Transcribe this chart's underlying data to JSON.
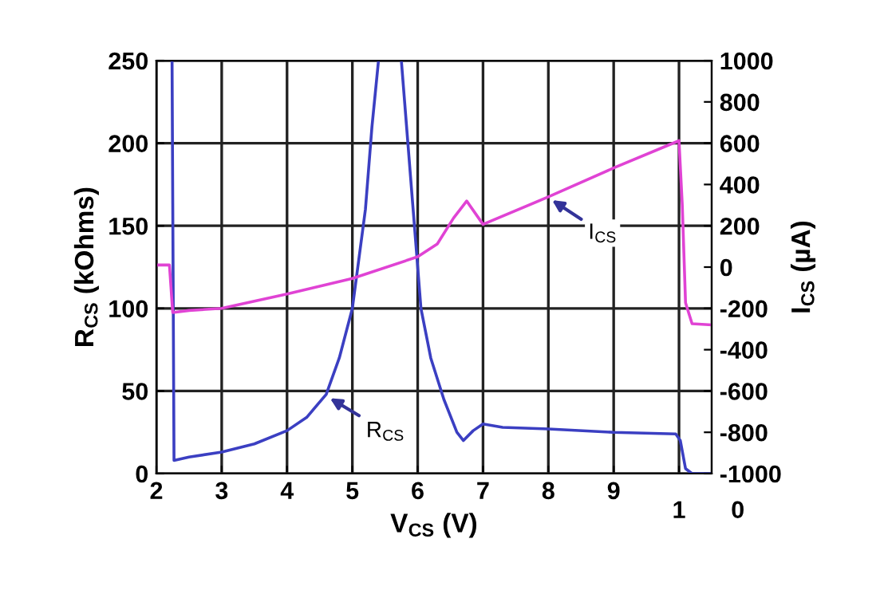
{
  "chart_data": {
    "type": "line",
    "xlabel": "V$_{CS}$ (V)",
    "ylabel": "R$_{CS}$ (kOhms)",
    "y2label": "I$_{CS}$ (µA)",
    "xlim": [
      2,
      10.5
    ],
    "xticks": [
      2,
      3,
      4,
      5,
      6,
      7,
      8,
      9,
      {
        "value": 10,
        "label": null
      }
    ],
    "ylim": [
      0,
      250
    ],
    "yticks": [
      0,
      50,
      100,
      150,
      200,
      250
    ],
    "y2lim": [
      -1000,
      1000
    ],
    "y2ticks": [
      -1000,
      -800,
      -600,
      -400,
      -200,
      0,
      200,
      400,
      600,
      800,
      1000
    ],
    "grid": true,
    "legend": false,
    "line_style": "solid",
    "marker": "none",
    "series": [
      {
        "color": "#3b3fc2",
        "x": [
          2.24,
          2.27,
          2.5,
          3,
          3.5,
          4,
          4.3,
          4.6,
          4.8,
          5.0,
          5.2,
          5.3,
          5.4,
          5.6,
          5.75,
          5.85,
          5.95,
          6.05,
          6.2,
          6.4,
          6.6,
          6.7,
          6.85,
          7.0,
          7.3,
          8,
          9,
          9.95,
          10.02,
          10.1,
          10.2,
          10.5
        ],
        "values": [
          250,
          8,
          10,
          13,
          18,
          26,
          34,
          48,
          70,
          100,
          160,
          210,
          250,
          null,
          250,
          200,
          150,
          100,
          70,
          45,
          25,
          20,
          26,
          30,
          28,
          27,
          25,
          24,
          20,
          3,
          0,
          0
        ]
      },
      {
        "color": "#e043d4",
        "axis": "y2",
        "x": [
          2.0,
          2.2,
          2.25,
          2.5,
          3,
          4,
          5,
          6,
          6.3,
          6.55,
          6.75,
          7.0,
          8,
          9,
          10,
          10.05,
          10.1,
          10.2,
          10.5
        ],
        "values": [
          10,
          10,
          -220,
          -210,
          -200,
          -130,
          -55,
          50,
          112,
          238,
          320,
          207,
          340,
          480,
          612,
          300,
          -173,
          -274,
          -280
        ]
      }
    ],
    "annotations": [
      {
        "text": "R$_{CS}$",
        "x": 4.6,
        "y": 47
      },
      {
        "text": "I$_{CS}$",
        "x": 8.0,
        "y": 167
      },
      "1",
      "0"
    ]
  }
}
